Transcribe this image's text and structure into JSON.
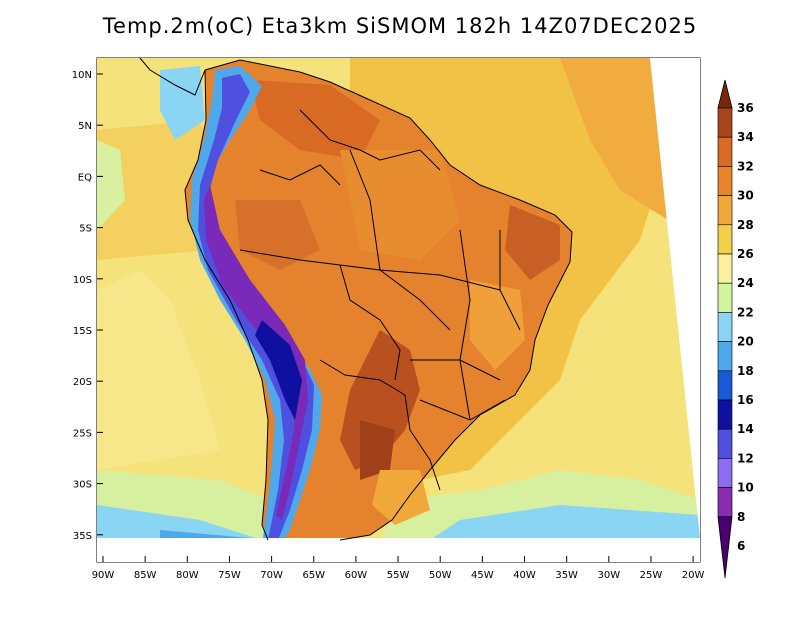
{
  "title": "Temp.2m(oC) Eta3km SiSMOM 182h 14Z07DEC2025",
  "lat_labels": [
    "10N",
    "5N",
    "EQ",
    "5S",
    "10S",
    "15S",
    "20S",
    "25S",
    "30S",
    "35S"
  ],
  "lon_labels": [
    "90W",
    "85W",
    "80W",
    "75W",
    "70W",
    "65W",
    "60W",
    "55W",
    "50W",
    "45W",
    "40W",
    "35W",
    "30W",
    "25W",
    "20W"
  ],
  "colorbar": {
    "labels": [
      "6",
      "8",
      "10",
      "12",
      "14",
      "16",
      "18",
      "20",
      "22",
      "24",
      "26",
      "28",
      "30",
      "32",
      "34",
      "36"
    ],
    "colors": [
      "#4b0070",
      "#8a2cb0",
      "#8c6cf0",
      "#5050e0",
      "#1010a0",
      "#1a5ad8",
      "#4ea8ea",
      "#8ad4f4",
      "#d2f4a0",
      "#faf0a0",
      "#f2d04a",
      "#f0a83a",
      "#e8842a",
      "#d86a24",
      "#a8451c",
      "#78280a"
    ]
  },
  "legend_colors": {
    "ocean_warm": "#f4c85a",
    "ocean_mild": "#f6e884",
    "ocean_cool": "#d8f0a0",
    "land_hot": "#e07a30",
    "land_very_hot": "#c0581e",
    "andes_cold": "#7a2ab8"
  }
}
